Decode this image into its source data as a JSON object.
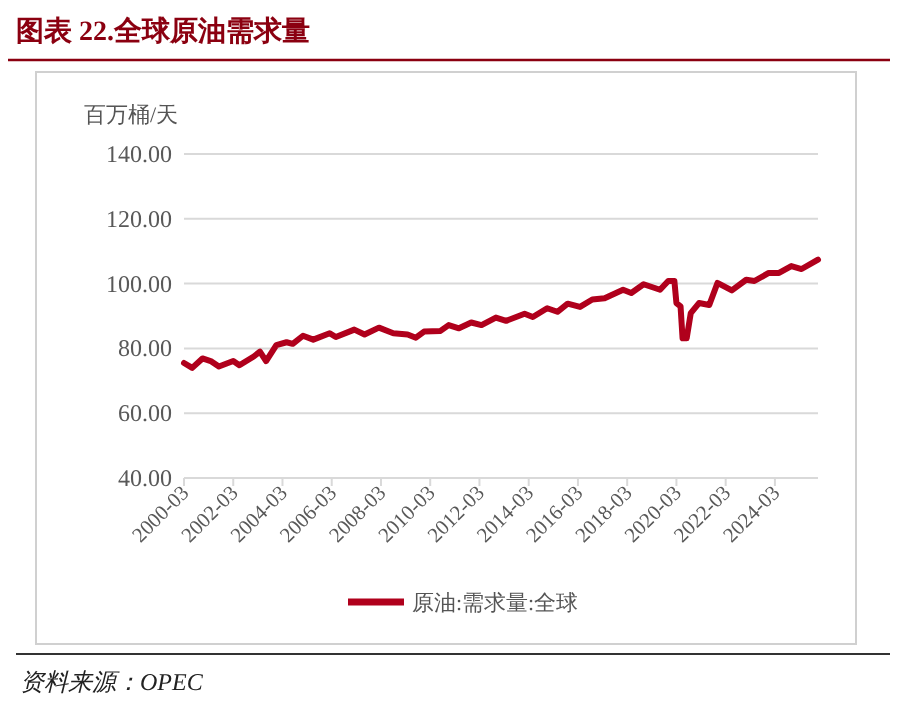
{
  "chart_data": {
    "type": "line",
    "title": "图表 22.全球原油需求量",
    "ylabel": "百万桶/天",
    "annotations": [
      "资料来源：OPEC"
    ],
    "x": [
      "2000-03",
      "2000-07",
      "2000-12",
      "2001-04",
      "2001-08",
      "2002-03",
      "2002-06",
      "2003-01",
      "2003-04",
      "2003-07",
      "2003-12",
      "2004-05",
      "2004-08",
      "2005-01",
      "2005-06",
      "2006-02",
      "2006-05",
      "2007-02",
      "2007-07",
      "2008-02",
      "2008-09",
      "2009-04",
      "2009-08",
      "2009-12",
      "2010-08",
      "2010-12",
      "2011-05",
      "2011-11",
      "2012-04",
      "2012-11",
      "2013-04",
      "2014-01",
      "2014-05",
      "2014-12",
      "2015-05",
      "2015-10",
      "2016-04",
      "2016-10",
      "2017-04",
      "2018-01",
      "2018-05",
      "2018-11",
      "2019-07",
      "2019-11",
      "2020-02",
      "2020-03",
      "2020-05",
      "2020-06",
      "2020-08",
      "2020-10",
      "2021-02",
      "2021-07",
      "2021-11",
      "2022-06",
      "2023-01",
      "2023-05",
      "2023-12",
      "2024-05",
      "2024-11",
      "2025-04",
      "2025-12"
    ],
    "series": [
      {
        "name": "原油:需求量:全球",
        "color": "#b0001c",
        "values": [
          75.5,
          74.0,
          76.9,
          76.1,
          74.4,
          76.1,
          74.8,
          77.5,
          79.0,
          76.1,
          81.0,
          81.9,
          81.4,
          83.9,
          82.7,
          84.7,
          83.5,
          85.8,
          84.3,
          86.4,
          84.7,
          84.3,
          83.3,
          85.2,
          85.4,
          87.2,
          86.2,
          88.0,
          87.2,
          89.5,
          88.5,
          90.7,
          89.7,
          92.4,
          91.3,
          93.8,
          92.8,
          95.1,
          95.5,
          98.1,
          97.1,
          99.8,
          98.1,
          100.8,
          100.8,
          94.0,
          93.0,
          83.1,
          83.1,
          90.9,
          94.0,
          93.4,
          100.2,
          97.9,
          101.2,
          100.8,
          103.3,
          103.3,
          105.4,
          104.5,
          107.4
        ]
      }
    ],
    "xlim": [
      "2000-03",
      "2025-12"
    ],
    "xticks": [
      "2000-03",
      "2002-03",
      "2004-03",
      "2006-03",
      "2008-03",
      "2010-03",
      "2012-03",
      "2014-03",
      "2016-03",
      "2018-03",
      "2020-03",
      "2022-03",
      "2024-03"
    ],
    "ylim": [
      40,
      140
    ],
    "yticks": [
      {
        "value": 40,
        "label": "40.00"
      },
      {
        "value": 60,
        "label": "60.00"
      },
      {
        "value": 80,
        "label": "80.00"
      },
      {
        "value": 100,
        "label": "100.00"
      },
      {
        "value": 120,
        "label": "120.00"
      },
      {
        "value": 140,
        "label": "140.00"
      }
    ],
    "grid": "y",
    "legend": "bottom",
    "line_style": "solid"
  }
}
